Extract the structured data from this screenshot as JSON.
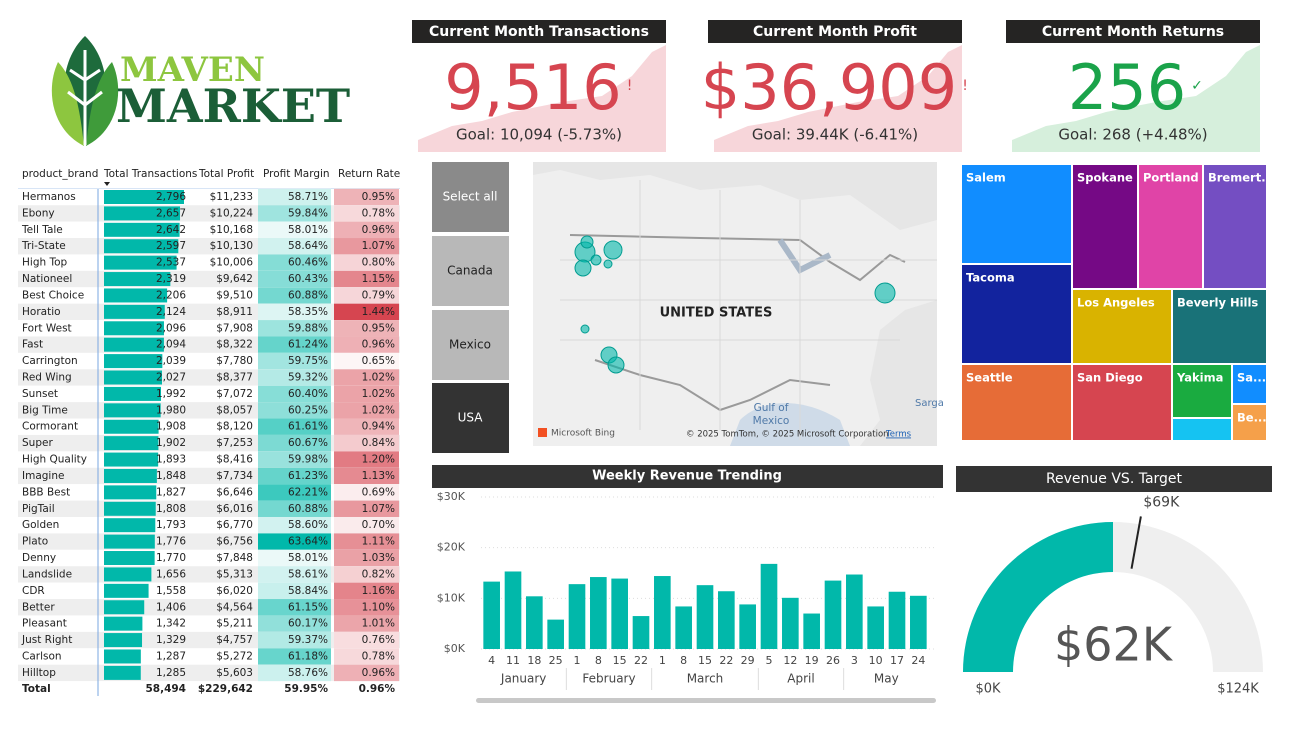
{
  "logo": {
    "line1": "MAVEN",
    "line2": "MARKET"
  },
  "kpis": [
    {
      "title": "Current Month Transactions",
      "value": "9,516",
      "status": "!",
      "goal": "Goal: 10,094 (-5.73%)",
      "color": "#d64550",
      "area_color": "#f7d6da"
    },
    {
      "title": "Current Month Profit",
      "value": "$36,909",
      "status": "!",
      "goal": "Goal: 39.44K (-6.41%)",
      "color": "#d64550",
      "area_color": "#f7d6da"
    },
    {
      "title": "Current Month Returns",
      "value": "256",
      "status": "✓",
      "goal": "Goal: 268 (+4.48%)",
      "color": "#1aa34a",
      "area_color": "#d6efdc"
    }
  ],
  "table": {
    "headers": [
      "product_brand",
      "Total Transactions",
      "Total Profit",
      "Profit Margin",
      "Return Rate"
    ],
    "rows": [
      [
        "Hermanos",
        "2,796",
        "$11,233",
        "58.71%",
        "0.95%"
      ],
      [
        "Ebony",
        "2,657",
        "$10,224",
        "59.84%",
        "0.78%"
      ],
      [
        "Tell Tale",
        "2,642",
        "$10,168",
        "58.01%",
        "0.96%"
      ],
      [
        "Tri-State",
        "2,597",
        "$10,130",
        "58.64%",
        "1.07%"
      ],
      [
        "High Top",
        "2,537",
        "$10,006",
        "60.46%",
        "0.80%"
      ],
      [
        "Nationeel",
        "2,319",
        "$9,642",
        "60.43%",
        "1.15%"
      ],
      [
        "Best Choice",
        "2,206",
        "$9,510",
        "60.88%",
        "0.79%"
      ],
      [
        "Horatio",
        "2,124",
        "$8,911",
        "58.35%",
        "1.44%"
      ],
      [
        "Fort West",
        "2,096",
        "$7,908",
        "59.88%",
        "0.95%"
      ],
      [
        "Fast",
        "2,094",
        "$8,322",
        "61.24%",
        "0.96%"
      ],
      [
        "Carrington",
        "2,039",
        "$7,780",
        "59.75%",
        "0.65%"
      ],
      [
        "Red Wing",
        "2,027",
        "$8,377",
        "59.32%",
        "1.02%"
      ],
      [
        "Sunset",
        "1,992",
        "$7,072",
        "60.40%",
        "1.02%"
      ],
      [
        "Big Time",
        "1,980",
        "$8,057",
        "60.25%",
        "1.02%"
      ],
      [
        "Cormorant",
        "1,908",
        "$8,120",
        "61.61%",
        "0.94%"
      ],
      [
        "Super",
        "1,902",
        "$7,253",
        "60.67%",
        "0.84%"
      ],
      [
        "High Quality",
        "1,893",
        "$8,416",
        "59.98%",
        "1.20%"
      ],
      [
        "Imagine",
        "1,848",
        "$7,734",
        "61.23%",
        "1.13%"
      ],
      [
        "BBB Best",
        "1,827",
        "$6,646",
        "62.21%",
        "0.69%"
      ],
      [
        "PigTail",
        "1,808",
        "$6,016",
        "60.88%",
        "1.07%"
      ],
      [
        "Golden",
        "1,793",
        "$6,770",
        "58.60%",
        "0.70%"
      ],
      [
        "Plato",
        "1,776",
        "$6,756",
        "63.64%",
        "1.11%"
      ],
      [
        "Denny",
        "1,770",
        "$7,848",
        "58.01%",
        "1.03%"
      ],
      [
        "Landslide",
        "1,656",
        "$5,313",
        "58.61%",
        "0.82%"
      ],
      [
        "CDR",
        "1,558",
        "$6,020",
        "58.84%",
        "1.16%"
      ],
      [
        "Better",
        "1,406",
        "$4,564",
        "61.15%",
        "1.10%"
      ],
      [
        "Pleasant",
        "1,342",
        "$5,211",
        "60.17%",
        "1.01%"
      ],
      [
        "Just Right",
        "1,329",
        "$4,757",
        "59.37%",
        "0.76%"
      ],
      [
        "Carlson",
        "1,287",
        "$5,272",
        "61.18%",
        "0.78%"
      ],
      [
        "Hilltop",
        "1,285",
        "$5,603",
        "58.76%",
        "0.96%"
      ]
    ],
    "total": [
      "Total",
      "58,494",
      "$229,642",
      "59.95%",
      "0.96%"
    ],
    "bar_color": "#01b8aa",
    "margin_color": "#01b8aa",
    "return_color": "#d64550"
  },
  "slicer": {
    "options": [
      "Select all",
      "Canada",
      "Mexico",
      "USA"
    ],
    "colors": [
      "#8a8a8a",
      "#b8b8b8",
      "#b8b8b8",
      "#333333"
    ]
  },
  "map": {
    "country_label": "UNITED STATES",
    "sea_label": [
      "Gulf of",
      "Mexico"
    ],
    "edge_label": "Sarga",
    "provider": "Microsoft Bing",
    "copyright": "© 2025 TomTom, © 2025 Microsoft Corporation",
    "terms": "Terms"
  },
  "treemap": {
    "tiles": [
      {
        "label": "Salem",
        "color": "#118dff"
      },
      {
        "label": "Spokane",
        "color": "#750985"
      },
      {
        "label": "Portland",
        "color": "#e044a7"
      },
      {
        "label": "Bremert...",
        "color": "#744ec2"
      },
      {
        "label": "Tacoma",
        "color": "#12239e"
      },
      {
        "label": "Los Angeles",
        "color": "#d9b300"
      },
      {
        "label": "Beverly Hills",
        "color": "#197278"
      },
      {
        "label": "Seattle",
        "color": "#e66c37"
      },
      {
        "label": "San Diego",
        "color": "#d64550"
      },
      {
        "label": "Yakima",
        "color": "#1aab40"
      },
      {
        "label": "Sa...",
        "color": "#118dff"
      },
      {
        "label": "Be...",
        "color": "#f5a04a"
      },
      {
        "color": "#15c3f2"
      }
    ]
  },
  "chart_data": [
    {
      "type": "bar",
      "title": "Weekly Revenue Trending",
      "categories": [
        "4",
        "11",
        "18",
        "25",
        "1",
        "8",
        "15",
        "22",
        "1",
        "8",
        "15",
        "22",
        "29",
        "5",
        "12",
        "19",
        "26",
        "3",
        "10",
        "17",
        "24"
      ],
      "groups": [
        {
          "name": "January",
          "count": 4
        },
        {
          "name": "February",
          "count": 4
        },
        {
          "name": "March",
          "count": 5
        },
        {
          "name": "April",
          "count": 4
        },
        {
          "name": "May",
          "count": 4
        }
      ],
      "values": [
        13300,
        15300,
        10400,
        5800,
        12800,
        14200,
        13900,
        6500,
        14400,
        8400,
        12600,
        11400,
        8800,
        16800,
        10100,
        7000,
        13500,
        14700,
        8400,
        11300,
        10500
      ],
      "color": "#01b8aa",
      "ylim": [
        0,
        30000
      ],
      "yticks": [
        {
          "value": 0,
          "label": "$0K"
        },
        {
          "value": 10000,
          "label": "$10K"
        },
        {
          "value": 20000,
          "label": "$20K"
        },
        {
          "value": 30000,
          "label": "$30K"
        }
      ],
      "grid": true
    },
    {
      "type": "gauge",
      "title": "Revenue VS. Target",
      "value": 62000,
      "value_label": "$62K",
      "target": 69000,
      "target_label": "$69K",
      "min": 0,
      "min_label": "$0K",
      "max": 124000,
      "max_label": "$124K",
      "color": "#01b8aa",
      "track_color": "#efefef"
    }
  ]
}
